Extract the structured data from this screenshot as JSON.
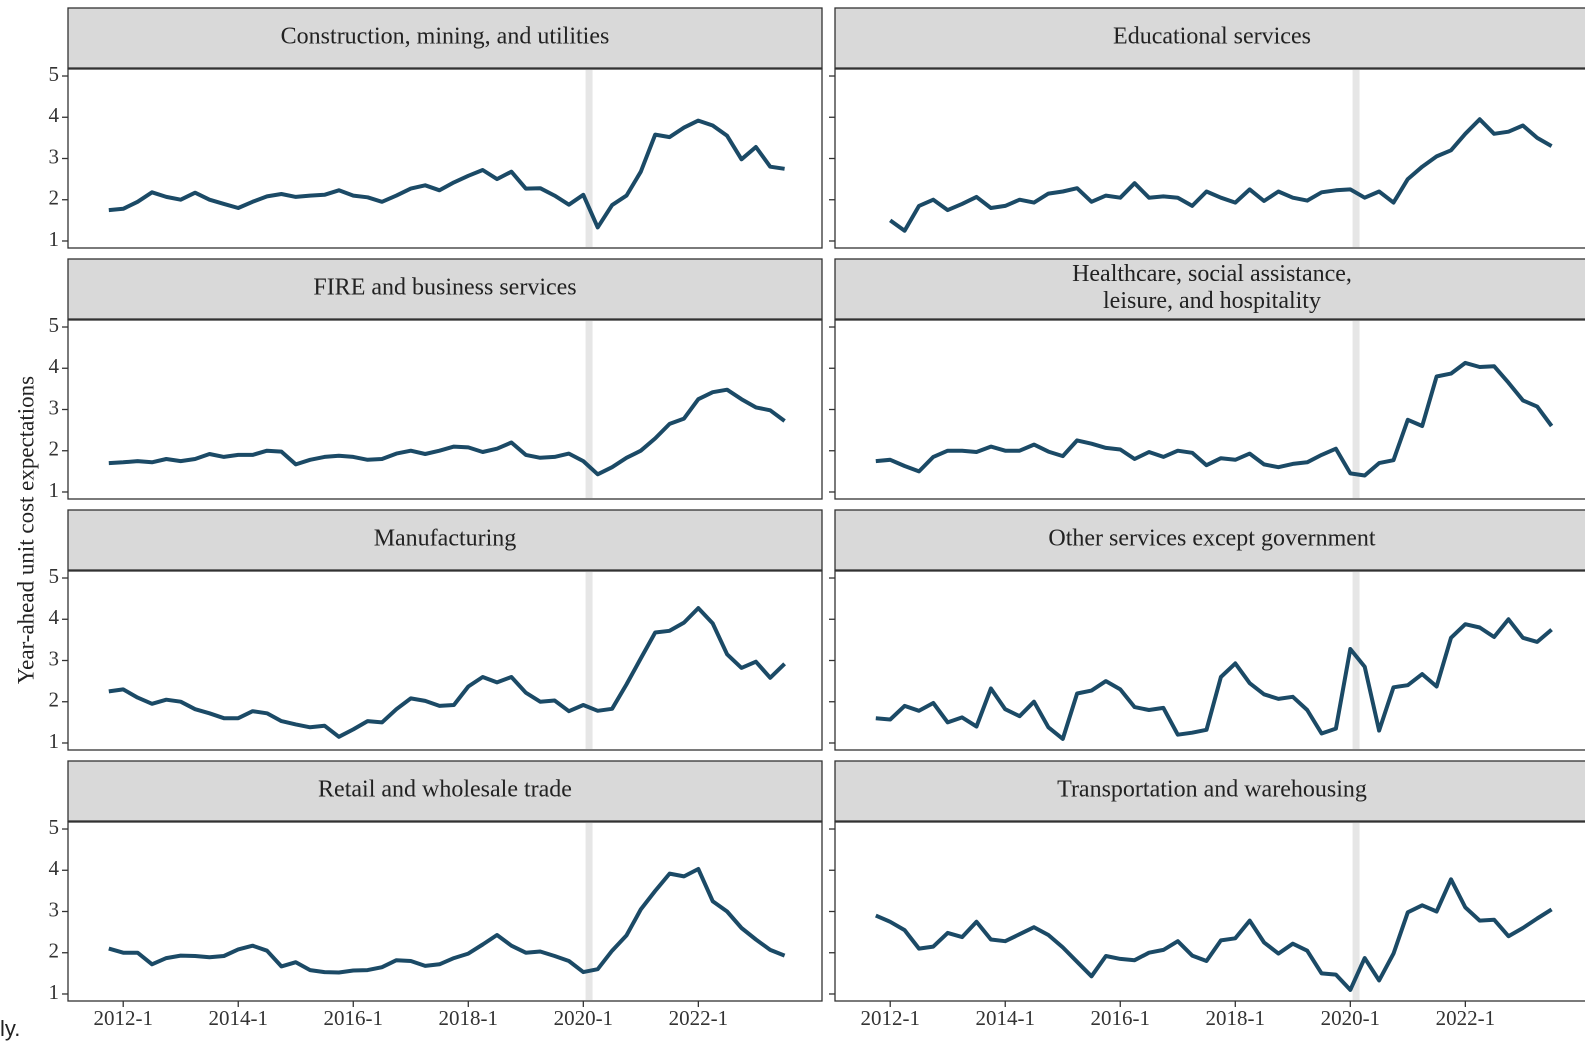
{
  "ylabel": "Year-ahead unit cost expectations",
  "fragment": "ly.",
  "chart_data": [
    {
      "type": "line",
      "title": "Construction, mining, and utilities",
      "color": "#1b4a66",
      "reference_x": 2020.1,
      "xlim": [
        2011.04,
        2024.15
      ],
      "xticks": [
        {
          "value": 2012,
          "label": "2012-1"
        },
        {
          "value": 2014,
          "label": "2014-1"
        },
        {
          "value": 2016,
          "label": "2016-1"
        },
        {
          "value": 2018,
          "label": "2018-1"
        },
        {
          "value": 2020,
          "label": "2020-1"
        },
        {
          "value": 2022,
          "label": "2022-1"
        }
      ],
      "ylim": [
        0.83,
        5.17
      ],
      "yticks": [
        1,
        2,
        3,
        4,
        5
      ],
      "x": [
        2011.75,
        2012,
        2012.25,
        2012.5,
        2012.75,
        2013,
        2013.25,
        2013.5,
        2013.75,
        2014,
        2014.25,
        2014.5,
        2014.75,
        2015,
        2015.25,
        2015.5,
        2015.75,
        2016,
        2016.25,
        2016.5,
        2016.75,
        2017,
        2017.25,
        2017.5,
        2017.75,
        2018,
        2018.25,
        2018.5,
        2018.75,
        2019,
        2019.25,
        2019.5,
        2019.75,
        2020,
        2020.25,
        2020.5,
        2020.75,
        2021,
        2021.25,
        2021.5,
        2021.75,
        2022,
        2022.25,
        2022.5,
        2022.75,
        2023,
        2023.25,
        2023.5
      ],
      "values": [
        1.75,
        1.78,
        1.95,
        2.18,
        2.07,
        2.0,
        2.17,
        2.0,
        1.9,
        1.8,
        1.95,
        2.08,
        2.14,
        2.07,
        2.1,
        2.12,
        2.23,
        2.1,
        2.06,
        1.95,
        2.1,
        2.27,
        2.35,
        2.23,
        2.42,
        2.58,
        2.72,
        2.5,
        2.68,
        2.27,
        2.28,
        2.1,
        1.88,
        2.12,
        1.33,
        1.87,
        2.1,
        2.68,
        3.58,
        3.52,
        3.75,
        3.92,
        3.8,
        3.55,
        2.98,
        3.28,
        2.8,
        2.75
      ]
    },
    {
      "type": "line",
      "title": "Educational services",
      "color": "#1b4a66",
      "reference_x": 2020.1,
      "xlim": [
        2011.04,
        2024.15
      ],
      "xticks": [
        {
          "value": 2012,
          "label": "2012-1"
        },
        {
          "value": 2014,
          "label": "2014-1"
        },
        {
          "value": 2016,
          "label": "2016-1"
        },
        {
          "value": 2018,
          "label": "2018-1"
        },
        {
          "value": 2020,
          "label": "2020-1"
        },
        {
          "value": 2022,
          "label": "2022-1"
        }
      ],
      "ylim": [
        0.83,
        5.17
      ],
      "yticks": [
        1,
        2,
        3,
        4,
        5
      ],
      "x": [
        2011.75,
        2012,
        2012.25,
        2012.5,
        2012.75,
        2013,
        2013.25,
        2013.5,
        2013.75,
        2014,
        2014.25,
        2014.5,
        2014.75,
        2015,
        2015.25,
        2015.5,
        2015.75,
        2016,
        2016.25,
        2016.5,
        2016.75,
        2017,
        2017.25,
        2017.5,
        2017.75,
        2018,
        2018.25,
        2018.5,
        2018.75,
        2019,
        2019.25,
        2019.5,
        2019.75,
        2020,
        2020.25,
        2020.5,
        2020.75,
        2021,
        2021.25,
        2021.5,
        2021.75,
        2022,
        2022.25,
        2022.5,
        2022.75,
        2023,
        2023.25,
        2023.5
      ],
      "values": [
        null,
        1.5,
        1.25,
        1.85,
        2.0,
        1.75,
        1.9,
        2.07,
        1.8,
        1.85,
        2.0,
        1.93,
        2.15,
        2.2,
        2.28,
        1.95,
        2.1,
        2.05,
        2.4,
        2.05,
        2.08,
        2.05,
        1.85,
        2.2,
        2.05,
        1.93,
        2.25,
        1.97,
        2.2,
        2.05,
        1.98,
        2.18,
        2.23,
        2.25,
        2.05,
        2.2,
        1.93,
        2.5,
        2.8,
        3.05,
        3.2,
        3.6,
        3.95,
        3.6,
        3.65,
        3.8,
        3.5,
        3.3
      ]
    },
    {
      "type": "line",
      "title": "FIRE and business services",
      "color": "#1b4a66",
      "reference_x": 2020.1,
      "xlim": [
        2011.04,
        2024.15
      ],
      "xticks": [
        {
          "value": 2012,
          "label": "2012-1"
        },
        {
          "value": 2014,
          "label": "2014-1"
        },
        {
          "value": 2016,
          "label": "2016-1"
        },
        {
          "value": 2018,
          "label": "2018-1"
        },
        {
          "value": 2020,
          "label": "2020-1"
        },
        {
          "value": 2022,
          "label": "2022-1"
        }
      ],
      "ylim": [
        0.83,
        5.17
      ],
      "yticks": [
        1,
        2,
        3,
        4,
        5
      ],
      "x": [
        2011.75,
        2012,
        2012.25,
        2012.5,
        2012.75,
        2013,
        2013.25,
        2013.5,
        2013.75,
        2014,
        2014.25,
        2014.5,
        2014.75,
        2015,
        2015.25,
        2015.5,
        2015.75,
        2016,
        2016.25,
        2016.5,
        2016.75,
        2017,
        2017.25,
        2017.5,
        2017.75,
        2018,
        2018.25,
        2018.5,
        2018.75,
        2019,
        2019.25,
        2019.5,
        2019.75,
        2020,
        2020.25,
        2020.5,
        2020.75,
        2021,
        2021.25,
        2021.5,
        2021.75,
        2022,
        2022.25,
        2022.5,
        2022.75,
        2023,
        2023.25,
        2023.5
      ],
      "values": [
        1.7,
        1.72,
        1.75,
        1.72,
        1.8,
        1.75,
        1.8,
        1.92,
        1.85,
        1.9,
        1.9,
        2.0,
        1.98,
        1.67,
        1.78,
        1.85,
        1.88,
        1.85,
        1.78,
        1.8,
        1.93,
        2.0,
        1.92,
        2.0,
        2.1,
        2.08,
        1.97,
        2.05,
        2.2,
        1.9,
        1.83,
        1.85,
        1.93,
        1.75,
        1.43,
        1.6,
        1.83,
        2.0,
        2.3,
        2.65,
        2.78,
        3.25,
        3.42,
        3.48,
        3.25,
        3.05,
        2.98,
        2.72
      ]
    },
    {
      "type": "line",
      "title": [
        "Healthcare, social assistance,",
        "leisure, and hospitality"
      ],
      "color": "#1b4a66",
      "reference_x": 2020.1,
      "xlim": [
        2011.04,
        2024.15
      ],
      "xticks": [
        {
          "value": 2012,
          "label": "2012-1"
        },
        {
          "value": 2014,
          "label": "2014-1"
        },
        {
          "value": 2016,
          "label": "2016-1"
        },
        {
          "value": 2018,
          "label": "2018-1"
        },
        {
          "value": 2020,
          "label": "2020-1"
        },
        {
          "value": 2022,
          "label": "2022-1"
        }
      ],
      "ylim": [
        0.83,
        5.17
      ],
      "yticks": [
        1,
        2,
        3,
        4,
        5
      ],
      "x": [
        2011.75,
        2012,
        2012.25,
        2012.5,
        2012.75,
        2013,
        2013.25,
        2013.5,
        2013.75,
        2014,
        2014.25,
        2014.5,
        2014.75,
        2015,
        2015.25,
        2015.5,
        2015.75,
        2016,
        2016.25,
        2016.5,
        2016.75,
        2017,
        2017.25,
        2017.5,
        2017.75,
        2018,
        2018.25,
        2018.5,
        2018.75,
        2019,
        2019.25,
        2019.5,
        2019.75,
        2020,
        2020.25,
        2020.5,
        2020.75,
        2021,
        2021.25,
        2021.5,
        2021.75,
        2022,
        2022.25,
        2022.5,
        2022.75,
        2023,
        2023.25,
        2023.5
      ],
      "values": [
        1.75,
        1.78,
        1.63,
        1.5,
        1.85,
        2.0,
        2.0,
        1.97,
        2.1,
        2.0,
        2.0,
        2.15,
        1.98,
        1.87,
        2.25,
        2.17,
        2.07,
        2.03,
        1.8,
        1.97,
        1.85,
        2.0,
        1.95,
        1.65,
        1.82,
        1.78,
        1.93,
        1.67,
        1.6,
        1.68,
        1.72,
        1.9,
        2.05,
        1.45,
        1.4,
        1.7,
        1.77,
        2.75,
        2.6,
        3.8,
        3.87,
        4.13,
        4.03,
        4.05,
        3.65,
        3.22,
        3.07,
        2.6
      ]
    },
    {
      "type": "line",
      "title": "Manufacturing",
      "color": "#1b4a66",
      "reference_x": 2020.1,
      "xlim": [
        2011.04,
        2024.15
      ],
      "xticks": [
        {
          "value": 2012,
          "label": "2012-1"
        },
        {
          "value": 2014,
          "label": "2014-1"
        },
        {
          "value": 2016,
          "label": "2016-1"
        },
        {
          "value": 2018,
          "label": "2018-1"
        },
        {
          "value": 2020,
          "label": "2020-1"
        },
        {
          "value": 2022,
          "label": "2022-1"
        }
      ],
      "ylim": [
        0.83,
        5.17
      ],
      "yticks": [
        1,
        2,
        3,
        4,
        5
      ],
      "x": [
        2011.75,
        2012,
        2012.25,
        2012.5,
        2012.75,
        2013,
        2013.25,
        2013.5,
        2013.75,
        2014,
        2014.25,
        2014.5,
        2014.75,
        2015,
        2015.25,
        2015.5,
        2015.75,
        2016,
        2016.25,
        2016.5,
        2016.75,
        2017,
        2017.25,
        2017.5,
        2017.75,
        2018,
        2018.25,
        2018.5,
        2018.75,
        2019,
        2019.25,
        2019.5,
        2019.75,
        2020,
        2020.25,
        2020.5,
        2020.75,
        2021,
        2021.25,
        2021.5,
        2021.75,
        2022,
        2022.25,
        2022.5,
        2022.75,
        2023,
        2023.25,
        2023.5
      ],
      "values": [
        2.25,
        2.3,
        2.1,
        1.95,
        2.05,
        2.0,
        1.82,
        1.72,
        1.6,
        1.6,
        1.77,
        1.72,
        1.53,
        1.45,
        1.38,
        1.42,
        1.15,
        1.33,
        1.53,
        1.5,
        1.82,
        2.08,
        2.02,
        1.9,
        1.92,
        2.37,
        2.6,
        2.47,
        2.6,
        2.22,
        2.0,
        2.03,
        1.77,
        1.92,
        1.78,
        1.83,
        2.42,
        3.05,
        3.68,
        3.72,
        3.92,
        4.27,
        3.9,
        3.15,
        2.82,
        2.97,
        2.58,
        2.92
      ]
    },
    {
      "type": "line",
      "title": "Other services except government",
      "color": "#1b4a66",
      "reference_x": 2020.1,
      "xlim": [
        2011.04,
        2024.15
      ],
      "xticks": [
        {
          "value": 2012,
          "label": "2012-1"
        },
        {
          "value": 2014,
          "label": "2014-1"
        },
        {
          "value": 2016,
          "label": "2016-1"
        },
        {
          "value": 2018,
          "label": "2018-1"
        },
        {
          "value": 2020,
          "label": "2020-1"
        },
        {
          "value": 2022,
          "label": "2022-1"
        }
      ],
      "ylim": [
        0.83,
        5.17
      ],
      "yticks": [
        1,
        2,
        3,
        4,
        5
      ],
      "x": [
        2011.75,
        2012,
        2012.25,
        2012.5,
        2012.75,
        2013,
        2013.25,
        2013.5,
        2013.75,
        2014,
        2014.25,
        2014.5,
        2014.75,
        2015,
        2015.25,
        2015.5,
        2015.75,
        2016,
        2016.25,
        2016.5,
        2016.75,
        2017,
        2017.25,
        2017.5,
        2017.75,
        2018,
        2018.25,
        2018.5,
        2018.75,
        2019,
        2019.25,
        2019.5,
        2019.75,
        2020,
        2020.25,
        2020.5,
        2020.75,
        2021,
        2021.25,
        2021.5,
        2021.75,
        2022,
        2022.25,
        2022.5,
        2022.75,
        2023,
        2023.25,
        2023.5
      ],
      "values": [
        1.6,
        1.57,
        1.9,
        1.78,
        1.97,
        1.5,
        1.62,
        1.4,
        2.32,
        1.82,
        1.65,
        2.0,
        1.38,
        1.1,
        2.2,
        2.27,
        2.5,
        2.3,
        1.87,
        1.8,
        1.85,
        1.2,
        1.25,
        1.32,
        2.6,
        2.93,
        2.45,
        2.18,
        2.07,
        2.12,
        1.8,
        1.23,
        1.35,
        3.28,
        2.85,
        1.3,
        2.35,
        2.4,
        2.67,
        2.37,
        3.55,
        3.88,
        3.8,
        3.57,
        4.0,
        3.55,
        3.45,
        3.75
      ]
    },
    {
      "type": "line",
      "title": "Retail and wholesale trade",
      "color": "#1b4a66",
      "reference_x": 2020.1,
      "xlim": [
        2011.04,
        2024.15
      ],
      "xticks": [
        {
          "value": 2012,
          "label": "2012-1"
        },
        {
          "value": 2014,
          "label": "2014-1"
        },
        {
          "value": 2016,
          "label": "2016-1"
        },
        {
          "value": 2018,
          "label": "2018-1"
        },
        {
          "value": 2020,
          "label": "2020-1"
        },
        {
          "value": 2022,
          "label": "2022-1"
        }
      ],
      "ylim": [
        0.83,
        5.17
      ],
      "yticks": [
        1,
        2,
        3,
        4,
        5
      ],
      "x": [
        2011.75,
        2012,
        2012.25,
        2012.5,
        2012.75,
        2013,
        2013.25,
        2013.5,
        2013.75,
        2014,
        2014.25,
        2014.5,
        2014.75,
        2015,
        2015.25,
        2015.5,
        2015.75,
        2016,
        2016.25,
        2016.5,
        2016.75,
        2017,
        2017.25,
        2017.5,
        2017.75,
        2018,
        2018.25,
        2018.5,
        2018.75,
        2019,
        2019.25,
        2019.5,
        2019.75,
        2020,
        2020.25,
        2020.5,
        2020.75,
        2021,
        2021.25,
        2021.5,
        2021.75,
        2022,
        2022.25,
        2022.5,
        2022.75,
        2023,
        2023.25,
        2023.5
      ],
      "values": [
        2.1,
        2.0,
        2.0,
        1.72,
        1.87,
        1.93,
        1.92,
        1.89,
        1.92,
        2.08,
        2.17,
        2.05,
        1.67,
        1.77,
        1.58,
        1.53,
        1.52,
        1.57,
        1.58,
        1.65,
        1.82,
        1.8,
        1.68,
        1.72,
        1.87,
        1.98,
        2.2,
        2.43,
        2.17,
        2.0,
        2.03,
        1.92,
        1.8,
        1.53,
        1.6,
        2.05,
        2.42,
        3.05,
        3.5,
        3.92,
        3.85,
        4.03,
        3.25,
        3.0,
        2.6,
        2.32,
        2.07,
        1.93
      ]
    },
    {
      "type": "line",
      "title": "Transportation and warehousing",
      "color": "#1b4a66",
      "reference_x": 2020.1,
      "xlim": [
        2011.04,
        2024.15
      ],
      "xticks": [
        {
          "value": 2012,
          "label": "2012-1"
        },
        {
          "value": 2014,
          "label": "2014-1"
        },
        {
          "value": 2016,
          "label": "2016-1"
        },
        {
          "value": 2018,
          "label": "2018-1"
        },
        {
          "value": 2020,
          "label": "2020-1"
        },
        {
          "value": 2022,
          "label": "2022-1"
        }
      ],
      "ylim": [
        0.83,
        5.17
      ],
      "yticks": [
        1,
        2,
        3,
        4,
        5
      ],
      "x": [
        2011.75,
        2012,
        2012.25,
        2012.5,
        2012.75,
        2013,
        2013.25,
        2013.5,
        2013.75,
        2014,
        2014.25,
        2014.5,
        2014.75,
        2015,
        2015.25,
        2015.5,
        2015.75,
        2016,
        2016.25,
        2016.5,
        2016.75,
        2017,
        2017.25,
        2017.5,
        2017.75,
        2018,
        2018.25,
        2018.5,
        2018.75,
        2019,
        2019.25,
        2019.5,
        2019.75,
        2020,
        2020.25,
        2020.5,
        2020.75,
        2021,
        2021.25,
        2021.5,
        2021.75,
        2022,
        2022.25,
        2022.5,
        2022.75,
        2023,
        2023.25,
        2023.5
      ],
      "values": [
        2.9,
        2.75,
        2.55,
        2.1,
        2.15,
        2.48,
        2.38,
        2.75,
        2.32,
        2.28,
        2.45,
        2.62,
        2.43,
        2.13,
        1.78,
        1.43,
        1.92,
        1.85,
        1.82,
        2.0,
        2.07,
        2.28,
        1.93,
        1.8,
        2.3,
        2.35,
        2.78,
        2.25,
        1.98,
        2.22,
        2.05,
        1.5,
        1.47,
        1.1,
        1.87,
        1.33,
        1.98,
        2.98,
        3.15,
        3.0,
        3.78,
        3.1,
        2.78,
        2.8,
        2.4,
        2.6,
        2.83,
        3.05
      ]
    }
  ]
}
